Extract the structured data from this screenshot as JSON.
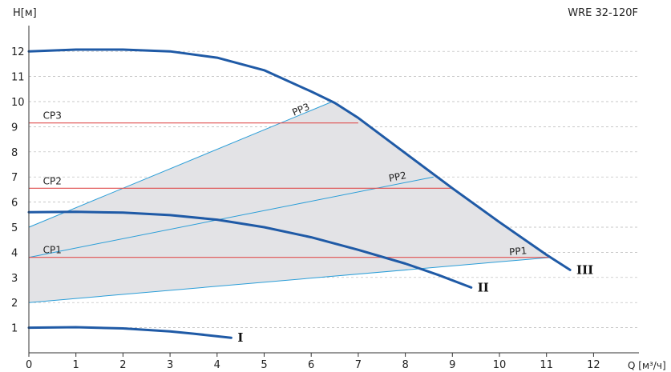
{
  "chart_data": {
    "type": "line",
    "title": "WRE 32-120F",
    "ylabel": "H[м]",
    "xlabel": "Q [м³/ч]",
    "xlim": [
      0,
      13
    ],
    "ylim": [
      0,
      13
    ],
    "xticks": [
      "0",
      "1",
      "2",
      "3",
      "4",
      "5",
      "6",
      "7",
      "8",
      "9",
      "10",
      "11",
      "12"
    ],
    "yticks": [
      "1",
      "2",
      "3",
      "4",
      "5",
      "6",
      "7",
      "8",
      "9",
      "10",
      "11",
      "12"
    ],
    "grid": "horizontal-dashed",
    "colors": {
      "curve": "#1f5aa6",
      "pp": "#2b9ed8",
      "cp": "#e05050",
      "area": "#e3e3e6"
    },
    "speed_curves": [
      {
        "name": "I",
        "x": [
          0,
          1,
          2,
          3,
          3.5,
          4.3
        ],
        "y": [
          1.0,
          1.02,
          0.97,
          0.85,
          0.76,
          0.6
        ]
      },
      {
        "name": "II",
        "x": [
          0,
          1,
          2,
          3,
          4,
          5,
          6,
          7,
          8,
          8.7,
          9.4
        ],
        "y": [
          5.6,
          5.61,
          5.58,
          5.48,
          5.3,
          5.0,
          4.6,
          4.1,
          3.55,
          3.1,
          2.6
        ]
      },
      {
        "name": "III",
        "x": [
          0,
          1,
          2,
          3,
          4,
          5,
          6,
          6.5,
          7,
          8,
          9,
          10,
          11,
          11.5
        ],
        "y": [
          12.0,
          12.07,
          12.07,
          12.0,
          11.75,
          11.25,
          10.4,
          9.95,
          9.35,
          7.95,
          6.55,
          5.2,
          3.9,
          3.3
        ]
      }
    ],
    "pp_lines": [
      {
        "name": "PP1",
        "x": [
          0,
          11.1
        ],
        "y": [
          2.0,
          3.8
        ]
      },
      {
        "name": "PP2",
        "x": [
          0,
          8.6
        ],
        "y": [
          3.8,
          7.0
        ]
      },
      {
        "name": "PP3",
        "x": [
          0,
          6.45
        ],
        "y": [
          5.0,
          10.0
        ]
      }
    ],
    "cp_lines": [
      {
        "name": "CP1",
        "x": [
          0,
          11.1
        ],
        "y": [
          3.8,
          3.8
        ]
      },
      {
        "name": "CP2",
        "x": [
          0,
          9.0
        ],
        "y": [
          6.55,
          6.55
        ]
      },
      {
        "name": "CP3",
        "x": [
          0,
          7.0
        ],
        "y": [
          9.15,
          9.15
        ]
      }
    ],
    "operating_area": {
      "x": [
        0,
        6.45,
        7,
        8,
        9,
        10,
        11,
        11.1,
        0
      ],
      "y": [
        5.0,
        10.0,
        9.35,
        7.95,
        6.55,
        5.2,
        3.9,
        3.8,
        2.0
      ]
    }
  }
}
